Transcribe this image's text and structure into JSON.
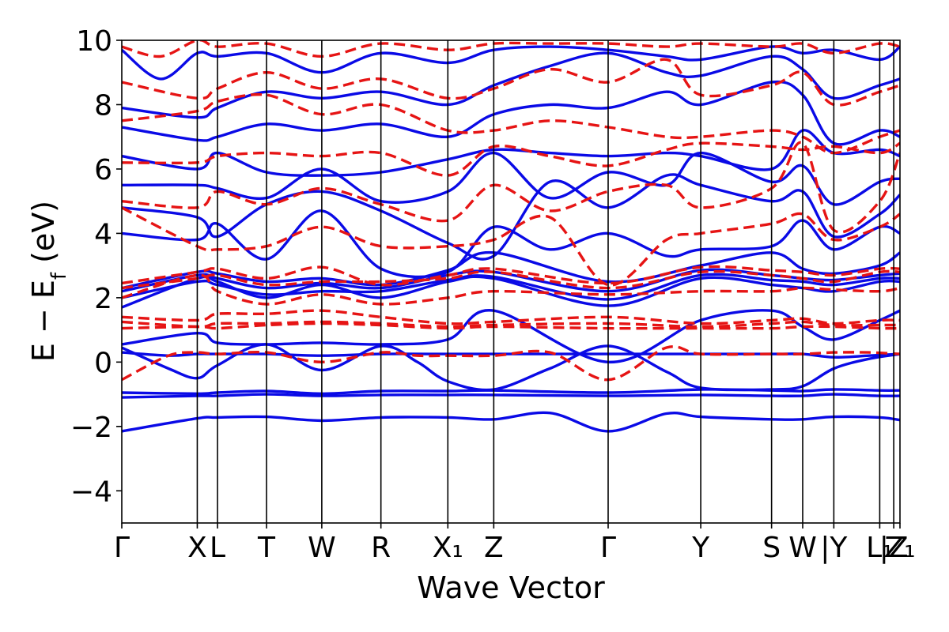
{
  "chart_data": {
    "type": "line",
    "xlabel": "Wave Vector",
    "ylabel": "E − E_f (eV)",
    "ylim": [
      -5,
      10
    ],
    "yticks": [
      -4,
      -2,
      0,
      2,
      4,
      6,
      8,
      10
    ],
    "ytick_labels": [
      "−4",
      "−2",
      "0",
      "2",
      "4",
      "6",
      "8",
      "10"
    ],
    "xlim": [
      0,
      1
    ],
    "kpoints": [
      {
        "label": "Γ",
        "x": 0.0
      },
      {
        "label": "X",
        "x": 0.097
      },
      {
        "label": "L",
        "x": 0.123
      },
      {
        "label": "T",
        "x": 0.186
      },
      {
        "label": "W",
        "x": 0.257
      },
      {
        "label": "R",
        "x": 0.333
      },
      {
        "label": "X₁",
        "x": 0.419
      },
      {
        "label": "Z",
        "x": 0.478
      },
      {
        "label": "Γ",
        "x": 0.625
      },
      {
        "label": "Y",
        "x": 0.744
      },
      {
        "label": "S",
        "x": 0.835
      },
      {
        "label": "W",
        "x": 0.875
      },
      {
        "label": "|Y",
        "x": 0.915
      },
      {
        "label": "L₁",
        "x": 0.974
      },
      {
        "label": "|Z",
        "x": 0.992
      },
      {
        "label": "Z₁",
        "x": 1.0
      }
    ],
    "grid": false,
    "colors": {
      "solid": "#0a0ae6",
      "dashed": "#e61414"
    },
    "series": [
      {
        "style": "solid",
        "x": [
          0,
          0.097,
          0.123,
          0.186,
          0.257,
          0.333,
          0.419,
          0.478,
          0.55,
          0.625,
          0.7,
          0.744,
          0.835,
          0.875,
          0.915,
          0.974,
          1.0
        ],
        "y": [
          -2.15,
          -1.75,
          -1.72,
          -1.7,
          -1.82,
          -1.72,
          -1.72,
          -1.78,
          -1.58,
          -2.15,
          -1.6,
          -1.7,
          -1.78,
          -1.78,
          -1.7,
          -1.72,
          -1.8
        ]
      },
      {
        "style": "solid",
        "x": [
          0,
          0.097,
          0.123,
          0.186,
          0.257,
          0.333,
          0.419,
          0.478,
          0.625,
          0.744,
          0.835,
          0.875,
          0.915,
          0.974,
          1.0
        ],
        "y": [
          -1.1,
          -1.05,
          -1.05,
          -1.0,
          -1.05,
          -1.02,
          -1.02,
          -1.02,
          -1.05,
          -1.02,
          -1.05,
          -1.05,
          -1.0,
          -1.05,
          -1.05
        ]
      },
      {
        "style": "solid",
        "x": [
          0,
          0.097,
          0.123,
          0.186,
          0.257,
          0.333,
          0.419,
          0.478,
          0.625,
          0.744,
          0.835,
          0.875,
          0.915,
          0.974,
          1.0
        ],
        "y": [
          -0.95,
          -0.98,
          -0.95,
          -0.9,
          -0.98,
          -0.9,
          -0.9,
          -0.88,
          -0.95,
          -0.85,
          -0.88,
          -0.9,
          -0.85,
          -0.88,
          -0.88
        ]
      },
      {
        "style": "solid",
        "x": [
          0,
          0.06,
          0.097,
          0.123,
          0.186,
          0.257,
          0.333,
          0.38,
          0.419,
          0.478,
          0.55,
          0.625,
          0.7,
          0.744,
          0.835,
          0.875,
          0.915,
          0.96,
          1.0
        ],
        "y": [
          0.45,
          -0.2,
          -0.5,
          -0.1,
          0.55,
          -0.25,
          0.5,
          0.0,
          -0.6,
          -0.85,
          -0.2,
          0.5,
          -0.3,
          -0.8,
          -0.85,
          -0.75,
          -0.2,
          0.1,
          0.25
        ]
      },
      {
        "style": "solid",
        "x": [
          0,
          0.06,
          0.097,
          0.123,
          0.186,
          0.257,
          0.333,
          0.419,
          0.478,
          0.55,
          0.625,
          0.7,
          0.744,
          0.835,
          0.875,
          0.915,
          0.96,
          1.0
        ],
        "y": [
          0.3,
          0.2,
          0.25,
          0.25,
          0.25,
          0.2,
          0.25,
          0.25,
          0.25,
          0.25,
          0.25,
          0.25,
          0.25,
          0.25,
          0.25,
          0.15,
          0.2,
          0.25
        ]
      },
      {
        "style": "solid",
        "x": [
          0,
          0.097,
          0.123,
          0.186,
          0.257,
          0.333,
          0.419,
          0.478,
          0.625,
          0.744,
          0.835,
          0.875,
          0.915,
          0.974,
          1.0
        ],
        "y": [
          0.55,
          0.9,
          0.6,
          0.55,
          0.6,
          0.55,
          0.7,
          1.6,
          0.0,
          1.3,
          1.6,
          1.1,
          0.7,
          1.3,
          1.6
        ]
      },
      {
        "style": "solid",
        "x": [
          0,
          0.097,
          0.123,
          0.186,
          0.257,
          0.333,
          0.419,
          0.478,
          0.625,
          0.744,
          0.835,
          0.875,
          0.915,
          0.974,
          1.0
        ],
        "y": [
          1.7,
          2.6,
          2.5,
          2.0,
          2.4,
          2.0,
          2.5,
          2.6,
          1.75,
          2.6,
          2.4,
          2.3,
          2.2,
          2.5,
          2.5
        ]
      },
      {
        "style": "solid",
        "x": [
          0,
          0.097,
          0.123,
          0.186,
          0.257,
          0.333,
          0.419,
          0.478,
          0.625,
          0.744,
          0.835,
          0.875,
          0.915,
          0.974,
          1.0
        ],
        "y": [
          2.0,
          2.5,
          2.4,
          2.1,
          2.2,
          2.2,
          2.55,
          2.65,
          1.95,
          2.7,
          2.55,
          2.5,
          2.4,
          2.6,
          2.6
        ]
      },
      {
        "style": "solid",
        "x": [
          0,
          0.097,
          0.123,
          0.186,
          0.257,
          0.333,
          0.419,
          0.478,
          0.625,
          0.744,
          0.835,
          0.875,
          0.915,
          0.974,
          1.0
        ],
        "y": [
          2.2,
          2.7,
          2.6,
          2.3,
          2.45,
          2.3,
          2.7,
          2.8,
          2.2,
          2.85,
          2.7,
          2.6,
          2.55,
          2.7,
          2.75
        ]
      },
      {
        "style": "solid",
        "x": [
          0,
          0.097,
          0.123,
          0.186,
          0.257,
          0.333,
          0.419,
          0.478,
          0.625,
          0.744,
          0.835,
          0.875,
          0.915,
          0.974,
          1.0
        ],
        "y": [
          2.3,
          2.8,
          2.75,
          2.5,
          2.6,
          2.4,
          2.85,
          3.4,
          2.5,
          3.0,
          3.4,
          2.9,
          2.75,
          3.0,
          3.4
        ]
      },
      {
        "style": "solid",
        "x": [
          0,
          0.097,
          0.123,
          0.186,
          0.257,
          0.333,
          0.419,
          0.478,
          0.55,
          0.625,
          0.7,
          0.744,
          0.835,
          0.875,
          0.915,
          0.974,
          1.0
        ],
        "y": [
          4.0,
          3.8,
          4.3,
          3.2,
          4.7,
          2.9,
          2.8,
          4.2,
          3.5,
          4.0,
          3.3,
          3.5,
          3.6,
          4.4,
          3.5,
          4.2,
          4.0
        ]
      },
      {
        "style": "solid",
        "x": [
          0,
          0.097,
          0.123,
          0.186,
          0.257,
          0.333,
          0.419,
          0.478,
          0.55,
          0.625,
          0.7,
          0.744,
          0.835,
          0.875,
          0.915,
          0.974,
          1.0
        ],
        "y": [
          4.8,
          4.5,
          3.9,
          4.9,
          5.3,
          4.7,
          3.7,
          3.3,
          5.6,
          4.8,
          5.8,
          5.5,
          5.0,
          5.3,
          3.9,
          4.6,
          5.2
        ]
      },
      {
        "style": "solid",
        "x": [
          0,
          0.097,
          0.123,
          0.186,
          0.257,
          0.333,
          0.419,
          0.478,
          0.55,
          0.625,
          0.7,
          0.744,
          0.835,
          0.875,
          0.915,
          0.974,
          1.0
        ],
        "y": [
          5.5,
          5.5,
          5.4,
          5.1,
          6.0,
          5.0,
          5.3,
          6.5,
          5.1,
          5.9,
          5.5,
          6.5,
          5.6,
          6.1,
          4.9,
          5.6,
          5.7
        ]
      },
      {
        "style": "solid",
        "x": [
          0,
          0.097,
          0.123,
          0.186,
          0.257,
          0.333,
          0.419,
          0.478,
          0.55,
          0.625,
          0.7,
          0.744,
          0.835,
          0.875,
          0.915,
          0.974,
          1.0
        ],
        "y": [
          6.4,
          6.0,
          6.5,
          5.9,
          5.8,
          5.9,
          6.3,
          6.6,
          6.5,
          6.4,
          6.5,
          6.4,
          6.0,
          7.2,
          6.5,
          6.6,
          6.4
        ]
      },
      {
        "style": "solid",
        "x": [
          0,
          0.097,
          0.123,
          0.186,
          0.257,
          0.333,
          0.419,
          0.478,
          0.55,
          0.625,
          0.7,
          0.744,
          0.835,
          0.875,
          0.915,
          0.974,
          1.0
        ],
        "y": [
          7.3,
          6.9,
          7.0,
          7.4,
          7.2,
          7.4,
          7.0,
          7.7,
          8.0,
          7.9,
          8.4,
          8.0,
          8.7,
          8.3,
          6.8,
          7.2,
          7.0
        ]
      },
      {
        "style": "solid",
        "x": [
          0,
          0.097,
          0.123,
          0.186,
          0.257,
          0.333,
          0.419,
          0.478,
          0.55,
          0.625,
          0.7,
          0.744,
          0.835,
          0.875,
          0.915,
          0.974,
          1.0
        ],
        "y": [
          7.9,
          7.6,
          7.9,
          8.4,
          8.2,
          8.4,
          8.0,
          8.6,
          9.2,
          9.6,
          9.0,
          8.9,
          9.5,
          9.1,
          8.2,
          8.6,
          8.8
        ]
      },
      {
        "style": "solid",
        "x": [
          0,
          0.05,
          0.097,
          0.123,
          0.186,
          0.257,
          0.333,
          0.419,
          0.478,
          0.55,
          0.625,
          0.7,
          0.744,
          0.835,
          0.875,
          0.915,
          0.974,
          1.0
        ],
        "y": [
          9.7,
          8.8,
          9.6,
          9.5,
          9.6,
          9.0,
          9.6,
          9.3,
          9.7,
          9.8,
          9.7,
          9.5,
          9.4,
          9.8,
          9.6,
          9.7,
          9.4,
          9.8
        ]
      },
      {
        "style": "dashed",
        "x": [
          0,
          0.06,
          0.097,
          0.123,
          0.186,
          0.257,
          0.333,
          0.38,
          0.419,
          0.478,
          0.55,
          0.625,
          0.7,
          0.744,
          0.835,
          0.875,
          0.915,
          0.96,
          1.0
        ],
        "y": [
          -0.55,
          0.2,
          0.3,
          0.25,
          0.3,
          0.0,
          0.3,
          0.2,
          0.2,
          0.2,
          0.3,
          -0.55,
          0.45,
          0.25,
          0.25,
          0.25,
          0.3,
          0.3,
          0.25
        ]
      },
      {
        "style": "dashed",
        "x": [
          0,
          0.097,
          0.123,
          0.186,
          0.257,
          0.333,
          0.419,
          0.478,
          0.625,
          0.744,
          0.835,
          0.875,
          0.915,
          0.974,
          1.0
        ],
        "y": [
          1.05,
          1.1,
          1.05,
          1.15,
          1.2,
          1.15,
          1.05,
          1.1,
          1.05,
          1.05,
          1.05,
          1.1,
          1.1,
          1.05,
          1.05
        ]
      },
      {
        "style": "dashed",
        "x": [
          0,
          0.097,
          0.123,
          0.186,
          0.257,
          0.333,
          0.419,
          0.478,
          0.625,
          0.744,
          0.835,
          0.875,
          0.915,
          0.974,
          1.0
        ],
        "y": [
          1.25,
          1.1,
          1.2,
          1.2,
          1.25,
          1.2,
          1.1,
          1.15,
          1.2,
          1.1,
          1.2,
          1.25,
          1.15,
          1.15,
          1.15
        ]
      },
      {
        "style": "dashed",
        "x": [
          0,
          0.097,
          0.123,
          0.186,
          0.257,
          0.333,
          0.419,
          0.478,
          0.625,
          0.744,
          0.835,
          0.875,
          0.915,
          0.974,
          1.0
        ],
        "y": [
          1.4,
          1.3,
          1.5,
          1.5,
          1.6,
          1.4,
          1.2,
          1.25,
          1.4,
          1.2,
          1.3,
          1.35,
          1.2,
          1.3,
          1.3
        ]
      },
      {
        "style": "dashed",
        "x": [
          0,
          0.097,
          0.123,
          0.186,
          0.257,
          0.333,
          0.419,
          0.478,
          0.625,
          0.744,
          0.835,
          0.875,
          0.915,
          0.974,
          1.0
        ],
        "y": [
          2.0,
          2.7,
          2.2,
          1.8,
          2.1,
          1.8,
          2.0,
          2.2,
          2.1,
          2.2,
          2.2,
          2.3,
          2.25,
          2.2,
          2.3
        ]
      },
      {
        "style": "dashed",
        "x": [
          0,
          0.097,
          0.123,
          0.186,
          0.257,
          0.333,
          0.419,
          0.478,
          0.625,
          0.744,
          0.835,
          0.875,
          0.915,
          0.974,
          1.0
        ],
        "y": [
          2.3,
          2.6,
          2.7,
          2.4,
          2.5,
          2.5,
          2.6,
          2.8,
          2.3,
          2.8,
          2.7,
          2.6,
          2.5,
          2.8,
          2.8
        ]
      },
      {
        "style": "dashed",
        "x": [
          0,
          0.097,
          0.123,
          0.186,
          0.257,
          0.333,
          0.419,
          0.478,
          0.625,
          0.744,
          0.835,
          0.875,
          0.915,
          0.974,
          1.0
        ],
        "y": [
          2.45,
          2.8,
          2.9,
          2.6,
          2.95,
          2.4,
          2.7,
          2.9,
          2.45,
          2.95,
          2.85,
          2.8,
          2.7,
          2.9,
          2.9
        ]
      },
      {
        "style": "dashed",
        "x": [
          0,
          0.097,
          0.123,
          0.186,
          0.257,
          0.333,
          0.419,
          0.478,
          0.55,
          0.625,
          0.7,
          0.744,
          0.835,
          0.875,
          0.915,
          0.974,
          1.0
        ],
        "y": [
          4.8,
          3.6,
          3.5,
          3.6,
          4.2,
          3.6,
          3.6,
          3.8,
          4.5,
          2.4,
          3.8,
          4.0,
          4.3,
          4.6,
          3.8,
          4.2,
          4.6
        ]
      },
      {
        "style": "dashed",
        "x": [
          0,
          0.097,
          0.123,
          0.186,
          0.257,
          0.333,
          0.419,
          0.478,
          0.55,
          0.625,
          0.7,
          0.744,
          0.835,
          0.875,
          0.915,
          0.974,
          1.0
        ],
        "y": [
          5.0,
          4.8,
          5.3,
          4.9,
          5.4,
          4.9,
          4.4,
          5.5,
          4.7,
          5.3,
          5.5,
          4.8,
          5.4,
          6.8,
          4.1,
          5.0,
          6.5
        ]
      },
      {
        "style": "dashed",
        "x": [
          0,
          0.097,
          0.123,
          0.186,
          0.257,
          0.333,
          0.419,
          0.478,
          0.55,
          0.625,
          0.7,
          0.744,
          0.835,
          0.875,
          0.915,
          0.974,
          1.0
        ],
        "y": [
          6.2,
          6.2,
          6.4,
          6.5,
          6.4,
          6.5,
          5.8,
          6.7,
          6.4,
          6.1,
          6.6,
          6.8,
          6.7,
          6.6,
          6.7,
          6.5,
          6.8
        ]
      },
      {
        "style": "dashed",
        "x": [
          0,
          0.097,
          0.123,
          0.186,
          0.257,
          0.333,
          0.419,
          0.478,
          0.55,
          0.625,
          0.7,
          0.744,
          0.835,
          0.875,
          0.915,
          0.974,
          1.0
        ],
        "y": [
          7.5,
          7.8,
          8.1,
          8.3,
          7.7,
          8.0,
          7.2,
          7.2,
          7.5,
          7.3,
          7.0,
          7.0,
          7.2,
          7.0,
          6.5,
          7.0,
          7.2
        ]
      },
      {
        "style": "dashed",
        "x": [
          0,
          0.097,
          0.123,
          0.186,
          0.257,
          0.333,
          0.419,
          0.478,
          0.55,
          0.625,
          0.7,
          0.744,
          0.835,
          0.875,
          0.915,
          0.974,
          1.0
        ],
        "y": [
          8.7,
          8.2,
          8.5,
          9.0,
          8.5,
          8.8,
          8.2,
          8.5,
          9.1,
          8.7,
          9.4,
          8.3,
          8.6,
          9.0,
          8.0,
          8.4,
          8.6
        ]
      },
      {
        "style": "dashed",
        "x": [
          0,
          0.05,
          0.097,
          0.123,
          0.186,
          0.257,
          0.333,
          0.419,
          0.478,
          0.55,
          0.625,
          0.7,
          0.744,
          0.835,
          0.875,
          0.915,
          0.974,
          1.0
        ],
        "y": [
          9.8,
          9.5,
          10.0,
          9.8,
          9.9,
          9.5,
          9.9,
          9.7,
          9.9,
          9.9,
          9.9,
          9.8,
          9.9,
          9.8,
          9.9,
          9.6,
          9.9,
          9.8
        ]
      }
    ]
  }
}
